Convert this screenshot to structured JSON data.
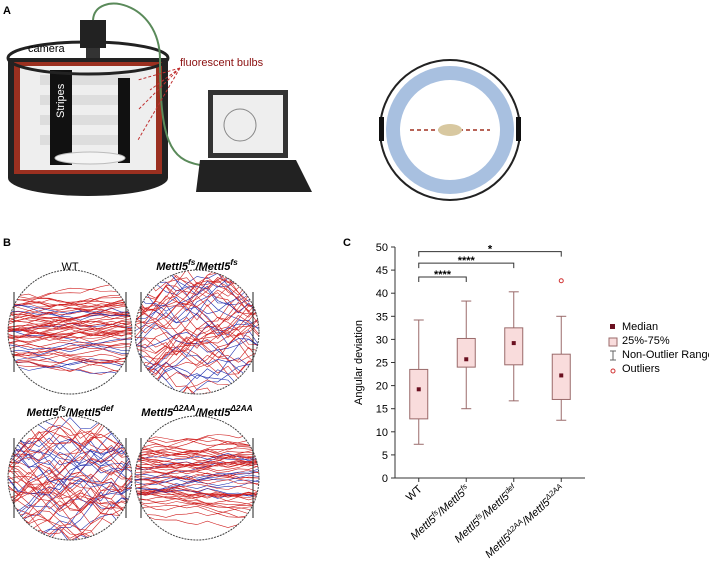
{
  "panel_labels": [
    "A",
    "B",
    "C"
  ],
  "panel_a": {
    "camera": "camera",
    "stripes": "Stripes",
    "bulbs": "fluorescent bulbs"
  },
  "panel_b": {
    "titles": [
      [
        "WT"
      ],
      [
        "Mettl5",
        "fs",
        "/Mettl5",
        "fs"
      ],
      [
        "Mettl5",
        "fs",
        "/Mettl5",
        "def"
      ],
      [
        "Mettl5",
        "Δ2AA",
        "/Mettl5",
        "Δ2AA"
      ]
    ]
  },
  "chart_data": {
    "type": "box",
    "ylabel": "Angular deviation",
    "categories": [
      [
        "WT"
      ],
      [
        "Mettl5",
        "fs",
        "/Mettl5",
        "fs"
      ],
      [
        "Mettl5",
        "fs",
        "/Mettl5",
        "def"
      ],
      [
        "Mettl5",
        "Δ2AA",
        "/Mettl5",
        "Δ2AA"
      ]
    ],
    "whisker_low": [
      7.3,
      15,
      16.7,
      12.5
    ],
    "q1": [
      12.8,
      24,
      24.5,
      17
    ],
    "median": [
      19.2,
      25.7,
      29.2,
      22.2
    ],
    "q3": [
      23.5,
      30.2,
      32.5,
      26.8
    ],
    "whisker_high": [
      34.2,
      38.3,
      40.3,
      35
    ],
    "outliers": [
      [],
      [],
      [],
      [
        42.7
      ]
    ],
    "comparisons": [
      {
        "categories": [
          0,
          1
        ],
        "label": "****",
        "y": 43.5
      },
      {
        "categories": [
          0,
          2
        ],
        "label": "****",
        "y": 46.5
      },
      {
        "categories": [
          0,
          3
        ],
        "label": "*",
        "y": 49
      }
    ],
    "ylim": [
      0,
      50
    ],
    "yticks": [
      0,
      5,
      10,
      15,
      20,
      25,
      30,
      35,
      40,
      45,
      50
    ],
    "legend": [
      "Median",
      "25%-75%",
      "Non-Outlier Range",
      "Outliers"
    ],
    "box_color": "#f9dcdc",
    "median_color": "#6b1020",
    "outlier_color": "#d03030"
  }
}
